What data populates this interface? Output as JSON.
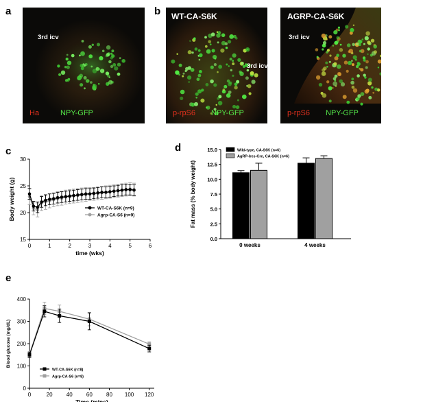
{
  "panels": {
    "a": {
      "letter": "a",
      "icv": "3rd icv",
      "stain1": "Ha",
      "stain2": "NPY-GFP"
    },
    "b": {
      "letter": "b",
      "left": {
        "title": "WT-CA-S6K",
        "icv": "3rd icv",
        "stain1": "p-rpS6",
        "stain2": "NPY-GFP"
      },
      "right": {
        "title": "AGRP-CA-S6K",
        "icv": "3rd icv",
        "stain1": "p-rpS6",
        "stain2": "NPY-GFP"
      }
    },
    "c": {
      "letter": "c"
    },
    "d": {
      "letter": "d"
    },
    "e": {
      "letter": "e"
    }
  },
  "colors": {
    "stain_red": "#e0301e",
    "stain_green": "#55e84a",
    "series_black": "#000000",
    "series_grey": "#a0a0a0"
  },
  "chart_data": [
    {
      "id": "c",
      "type": "line",
      "xlabel": "time (wks)",
      "ylabel": "Body weight (g)",
      "xlim": [
        0,
        6
      ],
      "ylim": [
        15,
        30
      ],
      "xticks": [
        0,
        1,
        2,
        3,
        4,
        5,
        6
      ],
      "yticks": [
        15,
        20,
        25,
        30
      ],
      "legend_position": "bottom-right",
      "series": [
        {
          "name": "WT-CA-S6K (n=9)",
          "color": "#000000",
          "x": [
            0,
            0.2,
            0.4,
            0.6,
            0.8,
            1.0,
            1.2,
            1.4,
            1.6,
            1.8,
            2.0,
            2.2,
            2.4,
            2.6,
            2.8,
            3.0,
            3.2,
            3.4,
            3.6,
            3.8,
            4.0,
            4.2,
            4.4,
            4.6,
            4.8,
            5.0,
            5.2
          ],
          "y": [
            23.5,
            21.2,
            21.0,
            22.0,
            22.3,
            22.5,
            22.6,
            22.8,
            22.9,
            23.0,
            23.1,
            23.2,
            23.3,
            23.4,
            23.5,
            23.5,
            23.6,
            23.7,
            23.8,
            23.8,
            23.9,
            24.0,
            24.1,
            24.2,
            24.3,
            24.3,
            24.2
          ],
          "err": [
            1.0,
            0.9,
            1.0,
            1.0,
            1.0,
            1.0,
            1.0,
            1.0,
            1.0,
            1.0,
            1.0,
            1.0,
            1.0,
            1.0,
            1.0,
            1.0,
            1.0,
            1.0,
            1.0,
            1.0,
            1.0,
            1.0,
            1.0,
            1.0,
            1.0,
            1.0,
            1.0
          ]
        },
        {
          "name": "Agrp-CA-S6 (n=9)",
          "color": "#a0a0a0",
          "x": [
            0,
            0.2,
            0.4,
            0.6,
            0.8,
            1.0,
            1.2,
            1.4,
            1.6,
            1.8,
            2.0,
            2.2,
            2.4,
            2.6,
            2.8,
            3.0,
            3.2,
            3.4,
            3.6,
            3.8,
            4.0,
            4.2,
            4.4,
            4.6,
            4.8,
            5.0,
            5.2
          ],
          "y": [
            23.0,
            20.8,
            20.5,
            21.8,
            22.0,
            22.2,
            22.4,
            22.6,
            22.7,
            22.9,
            23.0,
            23.1,
            23.2,
            23.3,
            23.4,
            23.5,
            23.5,
            23.6,
            23.7,
            23.8,
            23.9,
            24.0,
            24.1,
            24.2,
            24.3,
            24.4,
            24.3
          ],
          "err": [
            1.5,
            1.2,
            1.3,
            1.4,
            1.4,
            1.3,
            1.3,
            1.3,
            1.3,
            1.3,
            1.3,
            1.3,
            1.3,
            1.3,
            1.3,
            1.2,
            1.2,
            1.2,
            1.2,
            1.2,
            1.2,
            1.2,
            1.2,
            1.2,
            1.2,
            1.2,
            1.2
          ]
        }
      ]
    },
    {
      "id": "d",
      "type": "bar",
      "ylabel": "Fat mass (% body weight)",
      "categories": [
        "0 weeks",
        "4 weeks"
      ],
      "ylim": [
        0,
        15
      ],
      "yticks": [
        "0.0",
        "2.5",
        "5.0",
        "7.5",
        "10.0",
        "12.5",
        "15.0"
      ],
      "legend_position": "top-left",
      "series": [
        {
          "name": "Wild-type, CA-S6K (n=6)",
          "color": "#000000",
          "values": [
            11.1,
            12.7
          ],
          "err": [
            0.35,
            0.9
          ]
        },
        {
          "name": "AgRP-Ires-Cre, CA-S6K (n=6)",
          "color": "#a0a0a0",
          "values": [
            11.5,
            13.5
          ],
          "err": [
            1.2,
            0.45
          ]
        }
      ]
    },
    {
      "id": "e",
      "type": "line",
      "xlabel": "Time (mins)",
      "ylabel": "Blood glucose (mg/dL)",
      "xlim": [
        0,
        125
      ],
      "ylim": [
        0,
        400
      ],
      "xticks": [
        0,
        20,
        40,
        60,
        80,
        100,
        120
      ],
      "yticks": [
        0,
        100,
        200,
        300,
        400
      ],
      "legend_position": "bottom-left",
      "series": [
        {
          "name": "WT-CA-S6K (n=8)",
          "color": "#000000",
          "x": [
            0,
            15,
            30,
            60,
            120
          ],
          "y": [
            150,
            345,
            325,
            300,
            178
          ],
          "err": [
            12,
            25,
            30,
            38,
            15
          ]
        },
        {
          "name": "Agrp-CA-S6 (n=8)",
          "color": "#a0a0a0",
          "x": [
            0,
            15,
            30,
            60,
            120
          ],
          "y": [
            152,
            358,
            345,
            310,
            198
          ],
          "err": [
            12,
            28,
            28,
            30,
            10
          ]
        }
      ]
    }
  ]
}
